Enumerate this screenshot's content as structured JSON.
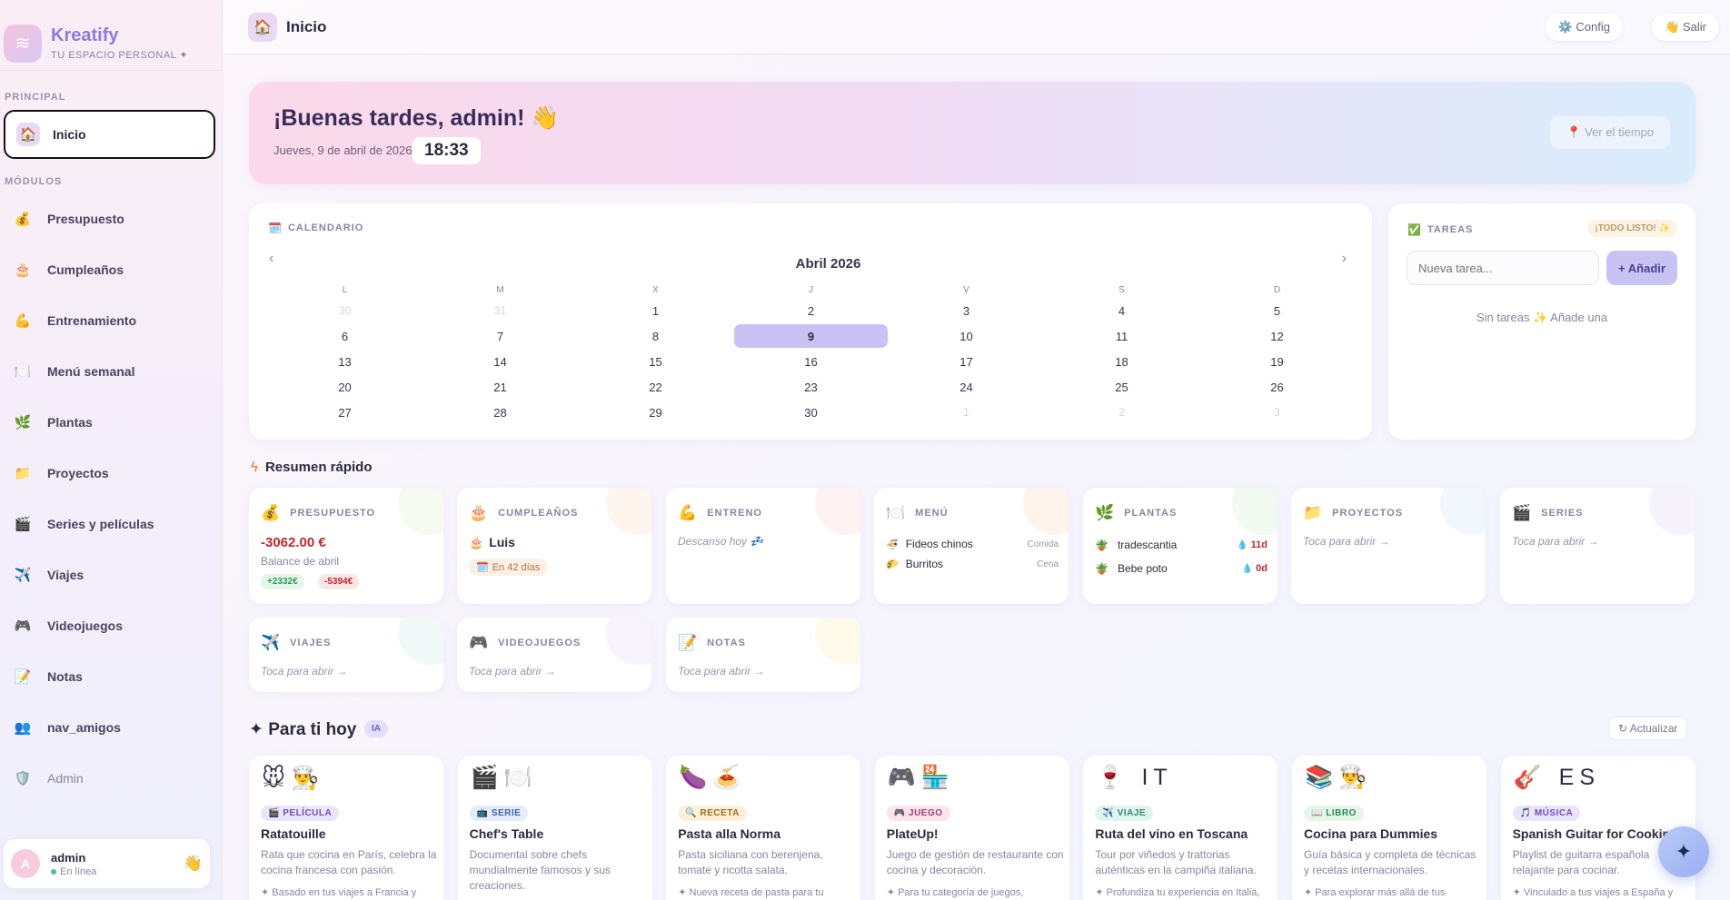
{
  "sidebar": {
    "brand": {
      "name": "Kreatify",
      "tagline": "TU ESPACIO PERSONAL ✦",
      "logo_icon": "waves-logo-icon"
    },
    "section_main": "PRINCIPAL",
    "active_item": {
      "label": "Inicio",
      "icon": "house-icon"
    },
    "section_modules": "MÓDULOS",
    "items": [
      {
        "label": "Presupuesto",
        "icon": "money-bag-icon"
      },
      {
        "label": "Cumpleaños",
        "icon": "birthday-cake-icon"
      },
      {
        "label": "Entrenamiento",
        "icon": "flexed-biceps-icon"
      },
      {
        "label": "Menú semanal",
        "icon": "plate-cutlery-icon"
      },
      {
        "label": "Plantas",
        "icon": "herb-icon"
      },
      {
        "label": "Proyectos",
        "icon": "folder-icon"
      },
      {
        "label": "Series y películas",
        "icon": "clapper-icon"
      },
      {
        "label": "Viajes",
        "icon": "airplane-icon"
      },
      {
        "label": "Videojuegos",
        "icon": "gamepad-icon"
      },
      {
        "label": "Notas",
        "icon": "memo-icon"
      },
      {
        "label": "nav_amigos",
        "icon": "people-icon"
      },
      {
        "label": "Admin",
        "icon": "shield-icon"
      }
    ],
    "user": {
      "avatar_letter": "A",
      "name": "admin",
      "status": "En línea",
      "wave": "👋"
    }
  },
  "topbar": {
    "title": "Inicio",
    "config_label": "⚙️ Config",
    "logout_label": "👋 Salir"
  },
  "hero": {
    "greeting": "¡Buenas tardes, admin! 👋",
    "date": "Jueves, 9 de abril de 2026",
    "time": "18:33",
    "weather_label": "📍 Ver el tiempo"
  },
  "calendar": {
    "label": "CALENDARIO",
    "month": "Abril 2026",
    "prev": "‹",
    "next": "›",
    "weekdays": [
      "L",
      "M",
      "X",
      "J",
      "V",
      "S",
      "D"
    ],
    "today": "9",
    "days": [
      {
        "d": "30",
        "out": true
      },
      {
        "d": "31",
        "out": true
      },
      {
        "d": "1"
      },
      {
        "d": "2"
      },
      {
        "d": "3"
      },
      {
        "d": "4"
      },
      {
        "d": "5"
      },
      {
        "d": "6"
      },
      {
        "d": "7"
      },
      {
        "d": "8"
      },
      {
        "d": "9"
      },
      {
        "d": "10"
      },
      {
        "d": "11"
      },
      {
        "d": "12"
      },
      {
        "d": "13"
      },
      {
        "d": "14"
      },
      {
        "d": "15"
      },
      {
        "d": "16"
      },
      {
        "d": "17"
      },
      {
        "d": "18"
      },
      {
        "d": "19"
      },
      {
        "d": "20"
      },
      {
        "d": "21"
      },
      {
        "d": "22"
      },
      {
        "d": "23"
      },
      {
        "d": "24"
      },
      {
        "d": "25"
      },
      {
        "d": "26"
      },
      {
        "d": "27"
      },
      {
        "d": "28"
      },
      {
        "d": "29"
      },
      {
        "d": "30"
      },
      {
        "d": "1",
        "out": true
      },
      {
        "d": "2",
        "out": true
      },
      {
        "d": "3",
        "out": true
      }
    ]
  },
  "tasks": {
    "label": "TAREAS",
    "badge": "¡TODO LISTO! ✨",
    "input_placeholder": "Nueva tarea...",
    "add_label": "+ Añadir",
    "empty": "Sin tareas ✨ Añade una"
  },
  "summary": {
    "title": "Resumen rápido",
    "budget": {
      "label": "PRESUPUESTO",
      "amount": "-3062.00 €",
      "sub": "Balance de abril",
      "income": "+2332€",
      "expense": "-5394€"
    },
    "birthdays": {
      "label": "CUMPLEAÑOS",
      "name": "Luis",
      "when": "En 42 días"
    },
    "training": {
      "label": "ENTRENO",
      "status": "Descanso hoy 💤"
    },
    "menu": {
      "label": "MENÚ",
      "meals": [
        {
          "name": "Fideos chinos",
          "type": "Comida",
          "icon": "noodles-icon"
        },
        {
          "name": "Burritos",
          "type": "Cena",
          "icon": "burrito-icon"
        }
      ]
    },
    "plants": {
      "label": "PLANTAS",
      "items": [
        {
          "name": "tradescantia",
          "days": "11d",
          "icon": "potted-plant-icon"
        },
        {
          "name": "Bebe poto",
          "days": "0d",
          "icon": "potted-plant-icon"
        }
      ]
    },
    "projects": {
      "label": "PROYECTOS",
      "hint": "Toca para abrir →"
    },
    "series": {
      "label": "SERIES",
      "hint": "Toca para abrir →"
    },
    "travel": {
      "label": "VIAJES",
      "hint": "Toca para abrir →"
    },
    "games": {
      "label": "VIDEOJUEGOS",
      "hint": "Toca para abrir →"
    },
    "notes": {
      "label": "NOTAS",
      "hint": "Toca para abrir →"
    }
  },
  "for_you": {
    "title": "✦ Para ti hoy",
    "ai_badge": "IA",
    "refresh_label": "↻ Actualizar",
    "cards": [
      {
        "icons": "🐭👨‍🍳",
        "tag": "🎬 PELÍCULA",
        "title": "Ratatouille",
        "desc": "Rata que cocina en París, celebra la cocina francesa con pasión.",
        "why": "✦ Basado en tus viajes a Francia y"
      },
      {
        "icons": "🎬🍽️",
        "tag": "📺 SERIE",
        "title": "Chef's Table",
        "desc": "Documental sobre chefs mundialmente famosos y sus creaciones.",
        "why": ""
      },
      {
        "icons": "🍆🍝",
        "tag": "🔍 RECETA",
        "title": "Pasta alla Norma",
        "desc": "Pasta siciliana con berenjena, tomate y ricotta salata.",
        "why": "✦ Nueva receta de pasta para tu"
      },
      {
        "icons": "🎮🏪",
        "tag": "🎮 JUEGO",
        "title": "PlateUp!",
        "desc": "Juego de gestión de restaurante con cocina y decoración.",
        "why": "✦ Para tu categoría de juegos,"
      },
      {
        "icons": "🍷 IT",
        "tag": "✈️ VIAJE",
        "title": "Ruta del vino en Toscana",
        "desc": "Tour por viñedos y trattorias auténticas en la campiña italiana.",
        "why": "✦ Profundiza tu experiencia en Italia,"
      },
      {
        "icons": "📚👨‍🍳",
        "tag": "📖 LIBRO",
        "title": "Cocina para Dummies",
        "desc": "Guía básica y completa de técnicas y recetas internacionales.",
        "why": "✦ Para explorar más allá de tus"
      },
      {
        "icons": "🎸 ES",
        "tag": "🎵 MÚSICA",
        "title": "Spanish Guitar for Cooking",
        "desc": "Playlist de guitarra española relajante para cocinar.",
        "why": "✦ Vinculado a tus viajes a España y"
      }
    ]
  },
  "fab_icon": "sparkle-icon",
  "colors": {
    "accent": "#8c7be0",
    "negative": "#c2272d",
    "positive": "#2f9a5a",
    "today": "#c8c2f5"
  }
}
